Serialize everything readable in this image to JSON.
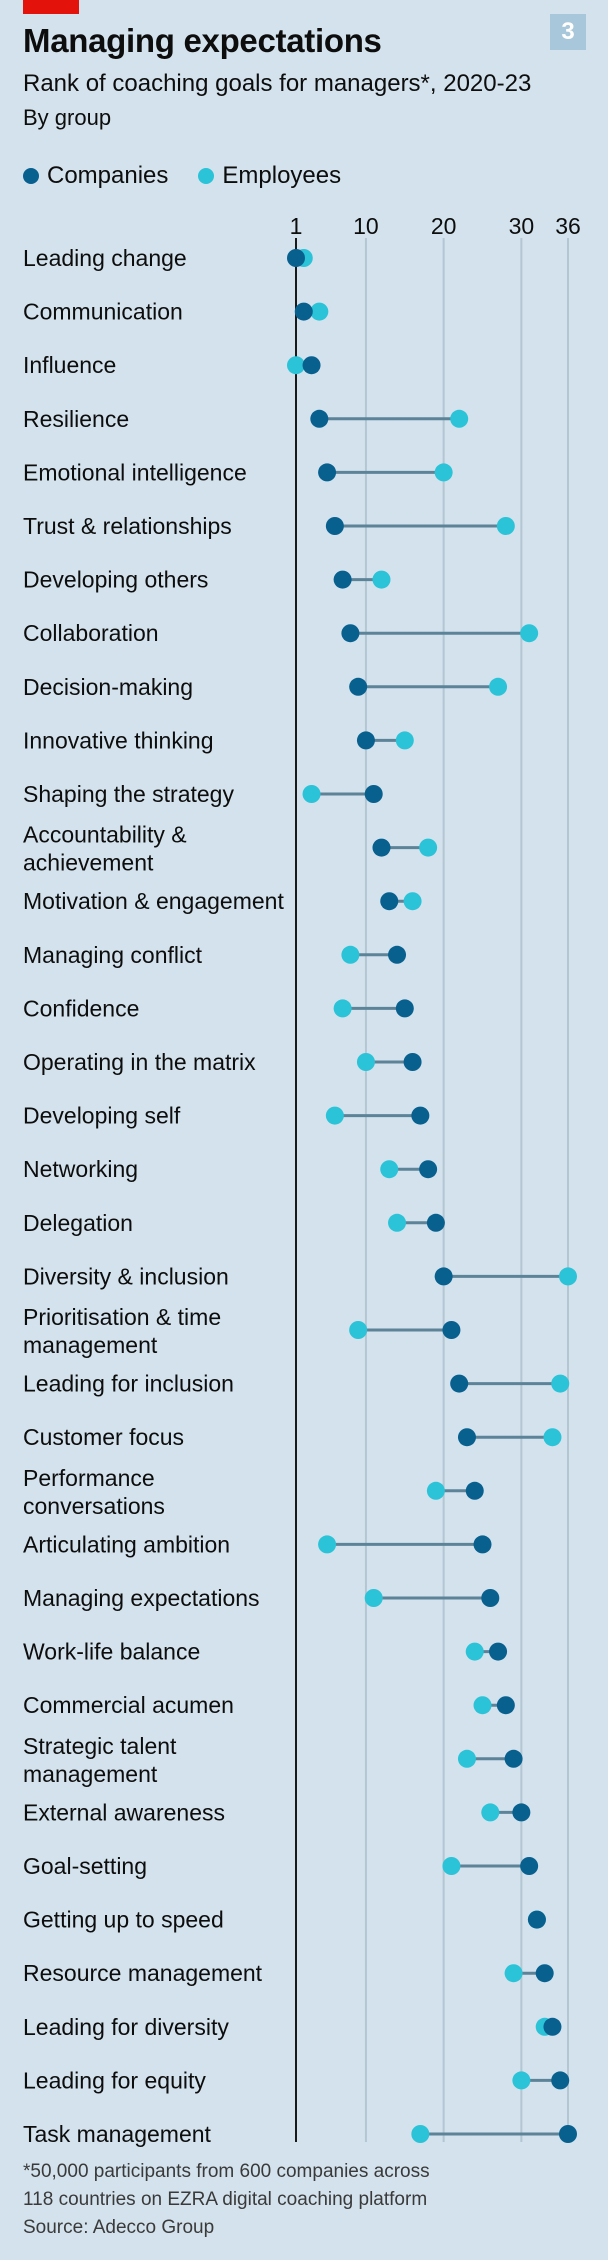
{
  "header": {
    "figure_number": "3",
    "title": "Managing expectations",
    "subtitle": "Rank of coaching goals for managers*, 2020-23",
    "subsubtitle": "By group"
  },
  "legend": {
    "companies": "Companies",
    "employees": "Employees"
  },
  "colors": {
    "companies": "#08608f",
    "employees": "#2bc3d7",
    "connector": "#5d8399",
    "background": "#d3e2ec",
    "gridline": "#b3c6d2",
    "brand_red": "#e3120b"
  },
  "footnote": {
    "line1": "*50,000 participants from 600 companies across",
    "line2": "118 countries on EZRA digital coaching platform",
    "source": "Source: Adecco Group"
  },
  "chart_data": {
    "type": "dot-plot",
    "title": "Managing expectations",
    "subtitle": "Rank of coaching goals for managers*, 2020-23",
    "xlim": [
      1,
      36
    ],
    "x_ticks": [
      1,
      10,
      20,
      30,
      36
    ],
    "x_axis_position": "top",
    "grid": true,
    "legend_position": "top-left",
    "series_names": [
      "Companies",
      "Employees"
    ],
    "categories": [
      [
        "Leading change"
      ],
      [
        "Communication"
      ],
      [
        "Influence"
      ],
      [
        "Resilience"
      ],
      [
        "Emotional intelligence"
      ],
      [
        "Trust & relationships"
      ],
      [
        "Developing others"
      ],
      [
        "Collaboration"
      ],
      [
        "Decision-making"
      ],
      [
        "Innovative thinking"
      ],
      [
        "Shaping the strategy"
      ],
      [
        "Accountability &",
        "achievement"
      ],
      [
        "Motivation & engagement"
      ],
      [
        "Managing conflict"
      ],
      [
        "Confidence"
      ],
      [
        "Operating in the matrix"
      ],
      [
        "Developing self"
      ],
      [
        "Networking"
      ],
      [
        "Delegation"
      ],
      [
        "Diversity & inclusion"
      ],
      [
        "Prioritisation & time",
        "management"
      ],
      [
        "Leading for inclusion"
      ],
      [
        "Customer focus"
      ],
      [
        "Performance",
        "conversations"
      ],
      [
        "Articulating ambition"
      ],
      [
        "Managing expectations"
      ],
      [
        "Work-life balance"
      ],
      [
        "Commercial acumen"
      ],
      [
        "Strategic talent",
        "management"
      ],
      [
        "External awareness"
      ],
      [
        "Goal-setting"
      ],
      [
        "Getting up to speed"
      ],
      [
        "Resource management"
      ],
      [
        "Leading for diversity"
      ],
      [
        "Leading for equity"
      ],
      [
        "Task management"
      ]
    ],
    "companies": [
      1,
      2,
      3,
      4,
      5,
      6,
      7,
      8,
      9,
      10,
      11,
      12,
      13,
      14,
      15,
      16,
      17,
      18,
      19,
      20,
      21,
      22,
      23,
      24,
      25,
      26,
      27,
      28,
      29,
      30,
      31,
      32,
      33,
      34,
      35,
      36
    ],
    "employees": [
      2,
      4,
      1,
      22,
      20,
      28,
      12,
      31,
      27,
      15,
      3,
      18,
      16,
      8,
      7,
      10,
      6,
      13,
      14,
      36,
      9,
      35,
      34,
      19,
      5,
      11,
      24,
      25,
      23,
      26,
      21,
      32,
      29,
      33,
      30,
      17
    ]
  }
}
